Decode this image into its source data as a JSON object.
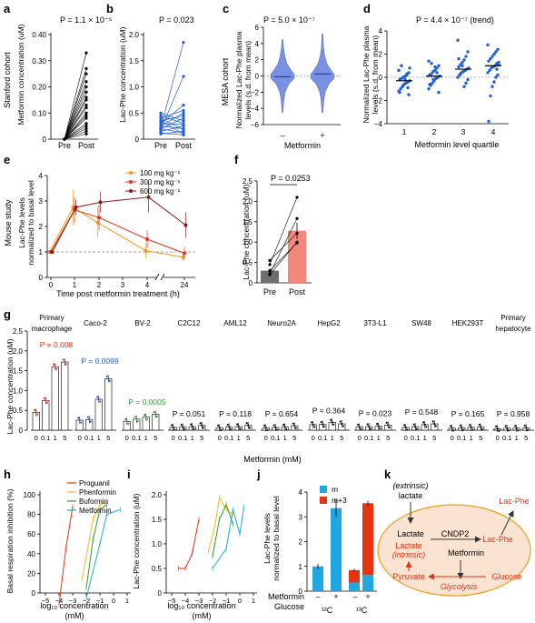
{
  "panels": {
    "a": {
      "letter": "a",
      "pval": "P = 1.1 × 10⁻⁵",
      "ylabel": "Metformin concentration (uM)",
      "side": "Stanford cohort",
      "xcats": [
        "Pre",
        "Post"
      ],
      "yticks": [
        "0",
        "0.10",
        "0.20",
        "0.30",
        "0.40"
      ]
    },
    "b": {
      "letter": "b",
      "pval": "P = 0.023",
      "ylabel": "Lac-Phe concentration (uM)",
      "xcats": [
        "Pre",
        "Post"
      ],
      "yticks": [
        "0",
        "0.5",
        "1.0",
        "1.5",
        "2.0"
      ]
    },
    "c": {
      "letter": "c",
      "pval": "P = 5.0 × 10⁻⁷",
      "ylabel1": "Normalized Lac-Phe plasma",
      "ylabel2": "levels (s.d. from mean)",
      "side": "MESA cohort",
      "xcats": [
        "–",
        "+"
      ],
      "xlabel": "Metformin",
      "yticks": [
        "6",
        "4",
        "2",
        "0",
        "−2",
        "−4",
        "−6"
      ]
    },
    "d": {
      "letter": "d",
      "pval": "P = 4.4 × 10⁻⁷ (trend)",
      "ylabel1": "Normalized Lac-Phe plasma",
      "ylabel2": "levels (s.d. from mean)",
      "xcats": [
        "1",
        "2",
        "3",
        "4"
      ],
      "xlabel": "Metformin level quartile",
      "yticks": [
        "4",
        "2",
        "0",
        "−2",
        "−4"
      ]
    },
    "e": {
      "letter": "e",
      "side": "Mouse study",
      "ylabel1": "Lac-Phe levels",
      "ylabel2": "normalized to basal level",
      "xlabel": "Time post metformin treatment (h)",
      "xticks": [
        "0",
        "1",
        "2",
        "3",
        "4",
        "24"
      ],
      "yticks": [
        "0",
        "1",
        "2",
        "3",
        "4"
      ]
    },
    "f": {
      "letter": "f",
      "pval": "P = 0.0253",
      "ylabel": "Lac-Phe concentration (uM)",
      "xcats": [
        "Pre",
        "Post"
      ],
      "yticks": [
        "0",
        "0.5",
        "1.0",
        "1.5",
        "2.0",
        "2.5"
      ]
    },
    "g": {
      "letter": "g",
      "ylabel": "Lac-Phe concentration (uM)",
      "xlabel": "Metformin (mM)",
      "dose_labels": [
        "0",
        "0.1",
        "1",
        "5"
      ],
      "yticks": [
        "0",
        "0.5",
        "1.0",
        "1.5",
        "2.0",
        "2.5"
      ]
    },
    "h": {
      "letter": "h",
      "ylabel": "Basal respiration inhibition (%)",
      "xlabel1": "log₁₀ concentration",
      "xlabel2": "(mM)",
      "xticks": [
        "−5",
        "−4",
        "−3",
        "−2",
        "−1",
        "0",
        "1"
      ],
      "yticks": [
        "0",
        "20",
        "40",
        "60",
        "80",
        "100"
      ]
    },
    "i": {
      "letter": "i",
      "ylabel": "Lac-Phe concentration (uM)",
      "xlabel1": "log₁₀ concentration",
      "xlabel2": "(mM)",
      "xticks": [
        "−5",
        "−4",
        "−3",
        "−2",
        "−1",
        "0",
        "1"
      ],
      "yticks": [
        "0",
        "0.5",
        "1.0",
        "1.5",
        "2.0"
      ]
    },
    "j": {
      "letter": "j",
      "ylabel1": "Lac-Phe levels",
      "ylabel2": "normalized to basal level",
      "yticks": [
        "0",
        "1",
        "2",
        "3",
        "4"
      ],
      "row1_label": "Metformin",
      "row2_label": "Glucose",
      "metformin_marks": [
        "–",
        "+",
        "–",
        "+"
      ],
      "glucose_labels": [
        "¹²C",
        "¹³C"
      ]
    },
    "k": {
      "letter": "k"
    }
  },
  "colors": {
    "blue": "#1f5fd6",
    "red": "#e63312",
    "green": "#2e9e2e",
    "orange": "#f39a1e",
    "darkred": "#8b1a1a",
    "violin": "#6b86e0",
    "barGray": "#6e6e6e",
    "barSalmon": "#f4877a",
    "cyan": "#1ea7e1",
    "gold": "#f2b92b",
    "ellipse": "#fbe3d2",
    "ellipseStroke": "#f39a1e"
  },
  "chart_data": [
    {
      "id": "a",
      "type": "line",
      "categories": [
        "Pre",
        "Post"
      ],
      "ylim": [
        0,
        0.4
      ],
      "series": [
        {
          "values": [
            0,
            0.33
          ]
        },
        {
          "values": [
            0,
            0.27
          ]
        },
        {
          "values": [
            0,
            0.25
          ]
        },
        {
          "values": [
            0,
            0.22
          ]
        },
        {
          "values": [
            0,
            0.2
          ]
        },
        {
          "values": [
            0,
            0.18
          ]
        },
        {
          "values": [
            0,
            0.16
          ]
        },
        {
          "values": [
            0,
            0.15
          ]
        },
        {
          "values": [
            0,
            0.13
          ]
        },
        {
          "values": [
            0,
            0.12
          ]
        },
        {
          "values": [
            0,
            0.1
          ]
        },
        {
          "values": [
            0,
            0.09
          ]
        },
        {
          "values": [
            0,
            0.08
          ]
        },
        {
          "values": [
            0,
            0.06
          ]
        },
        {
          "values": [
            0,
            0.05
          ]
        },
        {
          "values": [
            0,
            0.04
          ]
        },
        {
          "values": [
            0,
            0.03
          ]
        },
        {
          "values": [
            0,
            0.02
          ]
        }
      ]
    },
    {
      "id": "b",
      "type": "line",
      "categories": [
        "Pre",
        "Post"
      ],
      "ylim": [
        0,
        2.0
      ],
      "series": [
        {
          "values": [
            0.22,
            1.85
          ]
        },
        {
          "values": [
            0.18,
            1.2
          ]
        },
        {
          "values": [
            0.3,
            0.65
          ]
        },
        {
          "values": [
            0.4,
            0.55
          ]
        },
        {
          "values": [
            0.25,
            0.5
          ]
        },
        {
          "values": [
            0.35,
            0.45
          ]
        },
        {
          "values": [
            0.2,
            0.4
          ]
        },
        {
          "values": [
            0.5,
            0.35
          ]
        },
        {
          "values": [
            0.45,
            0.3
          ]
        },
        {
          "values": [
            0.3,
            0.28
          ]
        },
        {
          "values": [
            0.15,
            0.25
          ]
        },
        {
          "values": [
            0.25,
            0.2
          ]
        },
        {
          "values": [
            0.4,
            0.18
          ]
        },
        {
          "values": [
            0.1,
            0.15
          ]
        },
        {
          "values": [
            0.2,
            0.12
          ]
        },
        {
          "values": [
            0.35,
            0.1
          ]
        },
        {
          "values": [
            0.12,
            0.08
          ]
        }
      ]
    },
    {
      "id": "c",
      "type": "violin",
      "categories": [
        "–",
        "+"
      ],
      "ylim": [
        -6,
        6
      ],
      "medians": [
        -0.1,
        0.25
      ],
      "ranges": [
        [
          -4.5,
          4.5
        ],
        [
          -4.5,
          5.2
        ]
      ]
    },
    {
      "id": "d",
      "type": "scatter",
      "categories": [
        "1",
        "2",
        "3",
        "4"
      ],
      "ylim": [
        -4,
        4
      ],
      "means": [
        -0.3,
        0.1,
        0.7,
        1.0
      ],
      "points": [
        [
          0.6,
          0.4,
          0.2,
          0.1,
          0.0,
          -0.1,
          -0.2,
          -0.3,
          -0.4,
          -0.5,
          -0.6,
          -0.8,
          -1.0,
          -1.2,
          -1.5,
          0.3,
          -0.2,
          -0.7,
          1.0,
          -1.3,
          0.8,
          -0.9
        ],
        [
          1.4,
          1.0,
          0.8,
          0.6,
          0.5,
          0.3,
          0.2,
          0.1,
          0.0,
          -0.1,
          -0.3,
          -0.5,
          -0.7,
          -1.0,
          -1.3,
          0.4,
          0.9,
          -0.2,
          1.2,
          -0.6
        ],
        [
          3.2,
          2.2,
          1.8,
          1.5,
          1.3,
          1.1,
          0.9,
          0.8,
          0.7,
          0.6,
          0.5,
          0.4,
          0.2,
          0.0,
          -0.2,
          -0.5,
          -0.8,
          1.0,
          0.3,
          1.6
        ],
        [
          2.8,
          2.4,
          2.2,
          2.0,
          1.8,
          1.6,
          1.4,
          1.3,
          1.2,
          1.0,
          0.9,
          0.8,
          0.6,
          0.4,
          0.2,
          0.0,
          -0.4,
          -0.8,
          -1.6,
          -3.8,
          1.1,
          0.7
        ]
      ]
    },
    {
      "id": "e",
      "type": "line",
      "x": [
        "0",
        "1",
        "2",
        "3",
        "4",
        "24"
      ],
      "ylim": [
        0,
        4
      ],
      "series": [
        {
          "name": "100 mg kg⁻¹",
          "color": "#f39a1e",
          "values": [
            1.0,
            2.75,
            2.15,
            null,
            1.05,
            0.8
          ],
          "err": [
            0,
            0.7,
            0.6,
            null,
            0.3,
            0.15
          ]
        },
        {
          "name": "300 mg kg⁻¹",
          "color": "#e63312",
          "values": [
            1.0,
            2.65,
            2.35,
            null,
            1.5,
            0.95
          ],
          "err": [
            0,
            0.5,
            0.5,
            null,
            0.35,
            0.25
          ]
        },
        {
          "name": "600 mg kg⁻¹",
          "color": "#8b1a1a",
          "values": [
            1.0,
            2.75,
            2.95,
            null,
            3.15,
            2.05
          ],
          "err": [
            0,
            0.3,
            0.4,
            null,
            0.6,
            0.5
          ]
        }
      ],
      "baseline": 1.0
    },
    {
      "id": "f",
      "type": "bar",
      "categories": [
        "Pre",
        "Post"
      ],
      "values": [
        0.3,
        1.28
      ],
      "err": [
        0.05,
        0.2
      ],
      "ylim": [
        0,
        2.5
      ],
      "paired": [
        [
          0.22,
          1.58
        ],
        [
          0.45,
          2.1
        ],
        [
          0.3,
          0.98
        ],
        [
          0.55,
          1.22
        ],
        [
          0.2,
          1.0
        ]
      ]
    },
    {
      "id": "g",
      "type": "bar",
      "categories": [
        "0",
        "0.1",
        "1",
        "5"
      ],
      "ylim": [
        0,
        2.5
      ],
      "groups": [
        {
          "name": "Primary macrophage",
          "values": [
            0.45,
            0.75,
            1.6,
            1.72
          ],
          "pval": "P = 0.008",
          "pcolor": "#e63312",
          "dot": "#e63312"
        },
        {
          "name": "Caco-2",
          "values": [
            0.25,
            0.27,
            0.78,
            1.3
          ],
          "pval": "P = 0.0099",
          "pcolor": "#1f5fd6",
          "dot": "#1f5fd6"
        },
        {
          "name": "BV-2",
          "values": [
            0.22,
            0.28,
            0.33,
            0.4
          ],
          "pval": "P = 0.0005",
          "pcolor": "#2e9e2e",
          "dot": "#2e9e2e"
        },
        {
          "name": "C2C12",
          "values": [
            0.07,
            0.08,
            0.09,
            0.12
          ],
          "pval": "P = 0.051",
          "pcolor": "#000000",
          "dot": "#000000"
        },
        {
          "name": "AML12",
          "values": [
            0.06,
            0.08,
            0.09,
            0.12
          ],
          "pval": "P = 0.118",
          "pcolor": "#000000",
          "dot": "#000000"
        },
        {
          "name": "Neuro2A",
          "values": [
            0.06,
            0.07,
            0.08,
            0.11
          ],
          "pval": "P = 0.654",
          "pcolor": "#000000",
          "dot": "#000000"
        },
        {
          "name": "HepG2",
          "values": [
            0.14,
            0.15,
            0.2,
            0.16
          ],
          "pval": "P = 0.364",
          "pcolor": "#000000",
          "dot": "#000000"
        },
        {
          "name": "3T3-L1",
          "values": [
            0.08,
            0.09,
            0.1,
            0.13
          ],
          "pval": "P = 0.023",
          "pcolor": "#000000",
          "dot": "#000000"
        },
        {
          "name": "SW48",
          "values": [
            0.07,
            0.09,
            0.14,
            0.16
          ],
          "pval": "P = 0.548",
          "pcolor": "#000000",
          "dot": "#000000"
        },
        {
          "name": "HEK293T",
          "values": [
            0.05,
            0.06,
            0.07,
            0.08
          ],
          "pval": "P = 0.165",
          "pcolor": "#000000",
          "dot": "#000000"
        },
        {
          "name": "Primary hepatocyte",
          "values": [
            0.04,
            0.05,
            0.05,
            0.06
          ],
          "pval": "P = 0.958",
          "pcolor": "#000000",
          "dot": "#000000"
        }
      ]
    },
    {
      "id": "h",
      "type": "line",
      "xlim": [
        -5,
        1
      ],
      "ylim": [
        0,
        100
      ],
      "series": [
        {
          "name": "Proguanil",
          "color": "#e63312",
          "x": [
            -4,
            -3.5,
            -3
          ],
          "y": [
            -12,
            45,
            88
          ]
        },
        {
          "name": "Phenformin",
          "color": "#f2b92b",
          "x": [
            -2.3,
            -1.5,
            -1,
            -0.5
          ],
          "y": [
            15,
            75,
            90,
            92
          ]
        },
        {
          "name": "Buformin",
          "color": "#2e9e2e",
          "x": [
            -2,
            -1.5,
            -1,
            -0.5
          ],
          "y": [
            5,
            55,
            85,
            90
          ]
        },
        {
          "name": "Metformin",
          "color": "#1ea7e1",
          "x": [
            -2,
            -1,
            -0.5,
            0.5
          ],
          "y": [
            -5,
            50,
            80,
            85
          ]
        }
      ]
    },
    {
      "id": "i",
      "type": "line",
      "xlim": [
        -5,
        1
      ],
      "ylim": [
        0,
        2.0
      ],
      "series": [
        {
          "name": "Proguanil",
          "color": "#e63312",
          "x": [
            -4.5,
            -4,
            -3.5,
            -3
          ],
          "y": [
            0.5,
            0.5,
            0.8,
            1.5
          ]
        },
        {
          "name": "Phenformin",
          "color": "#f2b92b",
          "x": [
            -2.3,
            -1.8,
            -1.5,
            -1,
            -0.5
          ],
          "y": [
            0.85,
            1.4,
            1.95,
            1.7,
            1.6
          ]
        },
        {
          "name": "Buformin",
          "color": "#2e9e2e",
          "x": [
            -2,
            -1.5,
            -1,
            -0.5
          ],
          "y": [
            0.75,
            1.5,
            1.8,
            1.4
          ]
        },
        {
          "name": "Metformin",
          "color": "#1ea7e1",
          "x": [
            -2,
            -1,
            -0.5,
            0,
            0.3
          ],
          "y": [
            0.5,
            0.9,
            1.7,
            1.2,
            1.75
          ]
        }
      ]
    },
    {
      "id": "j",
      "type": "bar",
      "stacked": true,
      "ylim": [
        0,
        4
      ],
      "series": [
        {
          "name": "m",
          "color": "#1ea7e1",
          "values": [
            1.0,
            3.35,
            0.35,
            0.65
          ]
        },
        {
          "name": "m+3",
          "color": "#e63312",
          "values": [
            0.0,
            0.0,
            0.5,
            2.9
          ]
        }
      ],
      "err": [
        0.1,
        0.35,
        0.05,
        0.1
      ]
    }
  ],
  "diagram_k": {
    "extrinsic": "(extrinsic)",
    "lactate_top": "lactate",
    "lactate": "Lactate",
    "cndp2": "CNDP2",
    "lacphe_in": "Lac-Phe",
    "lacphe_out": "Lac-Phe",
    "lactate_red": "Lactate",
    "intrinsic": "(intrinsic)",
    "metformin": "Metformin",
    "pyruvate": "Pyruvate",
    "glucose": "Glucose",
    "glycolysis": "Glycolysis"
  }
}
